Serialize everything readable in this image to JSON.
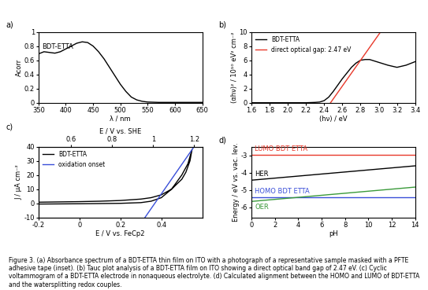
{
  "chart_data": [
    {
      "type": "line",
      "title": "a)",
      "x_label": "λ / nm",
      "y_label": "Acorr",
      "xlim": [
        350,
        650
      ],
      "xticks": [
        350,
        400,
        450,
        500,
        550,
        600,
        650
      ],
      "ylim": [
        0,
        1
      ],
      "yticks": [
        0,
        0.2,
        0.4,
        0.6,
        0.8,
        1
      ],
      "series": [
        {
          "name": "BDT-ETTA",
          "color": "#000000",
          "line_style": "solid",
          "x": [
            350,
            360,
            370,
            380,
            390,
            400,
            410,
            420,
            430,
            440,
            450,
            460,
            470,
            480,
            490,
            500,
            510,
            520,
            530,
            540,
            550,
            570,
            600,
            630,
            650
          ],
          "values": [
            0.69,
            0.72,
            0.71,
            0.7,
            0.72,
            0.76,
            0.8,
            0.84,
            0.86,
            0.85,
            0.8,
            0.72,
            0.62,
            0.5,
            0.38,
            0.26,
            0.16,
            0.08,
            0.04,
            0.02,
            0.01,
            0.005,
            0.005,
            0.005,
            0.005
          ]
        }
      ]
    },
    {
      "type": "line",
      "title": "b)",
      "x_label": "(hν) / eV",
      "y_label": "(αhν)² / 10¹⁰ eV² cm⁻²",
      "xlim": [
        1.6,
        3.4
      ],
      "xticks": [
        1.6,
        1.8,
        2.0,
        2.2,
        2.4,
        2.6,
        2.8,
        3.0,
        3.2,
        3.4
      ],
      "ylim": [
        0,
        10
      ],
      "yticks": [
        0,
        2,
        4,
        6,
        8,
        10
      ],
      "legend": "upper left",
      "series": [
        {
          "name": "BDT-ETTA",
          "color": "#000000",
          "line_style": "solid",
          "x": [
            1.6,
            1.8,
            2.0,
            2.2,
            2.3,
            2.35,
            2.4,
            2.45,
            2.5,
            2.55,
            2.6,
            2.65,
            2.7,
            2.75,
            2.8,
            2.85,
            2.9,
            2.95,
            3.0,
            3.1,
            3.2,
            3.3,
            3.4
          ],
          "values": [
            0,
            0,
            0,
            0,
            0.05,
            0.1,
            0.3,
            0.8,
            1.6,
            2.5,
            3.4,
            4.2,
            5.0,
            5.6,
            6.0,
            6.1,
            6.1,
            5.9,
            5.7,
            5.3,
            5.0,
            5.3,
            5.8
          ]
        },
        {
          "name": "direct optical gap: 2.47 eV",
          "color": "#e8392b",
          "line_style": "solid",
          "x": [
            2.47,
            3.02
          ],
          "values": [
            0,
            10
          ]
        }
      ]
    },
    {
      "type": "line",
      "title": "c)",
      "x_label": "E / V vs. FeCp2",
      "y_label": "J / µA cm⁻²",
      "xlim": [
        -0.2,
        0.6
      ],
      "xticks": [
        -0.2,
        0,
        0.2,
        0.4
      ],
      "x2_label": "E / V vs. SHE",
      "x2lim": [
        0.44,
        1.24
      ],
      "x2ticks": [
        0.6,
        0.8,
        1,
        1.2
      ],
      "ylim": [
        -10,
        40
      ],
      "yticks": [
        -10,
        0,
        10,
        20,
        30,
        40
      ],
      "legend": "upper left",
      "series": [
        {
          "name": "BDT-ETTA",
          "color": "#000000",
          "line_style": "solid",
          "x": [
            -0.2,
            0,
            0.2,
            0.3,
            0.35,
            0.4,
            0.45,
            0.5,
            0.53,
            0.55,
            0.54,
            0.52,
            0.5,
            0.45,
            0.4,
            0.35,
            0.3,
            0.2,
            0.1,
            0,
            -0.2,
            -0.2
          ],
          "values": [
            -0.5,
            -0.3,
            0,
            0.5,
            1.5,
            4,
            10,
            20,
            28,
            38,
            30,
            22,
            17,
            10,
            6,
            4,
            3,
            2,
            1.5,
            1.2,
            0.8,
            -0.5
          ]
        },
        {
          "name": "oxidation onset",
          "color": "#3a4fd8",
          "line_style": "solid",
          "x": [
            0.32,
            0.56
          ],
          "values": [
            -10,
            40
          ]
        }
      ]
    },
    {
      "type": "line",
      "title": "d)",
      "x_label": "pH",
      "y_label": "Energy / eV vs. vac. lev.",
      "xlim": [
        0,
        14
      ],
      "xticks": [
        0,
        2,
        4,
        6,
        8,
        10,
        12,
        14
      ],
      "ylim": [
        -6.6,
        -2.5
      ],
      "yticks": [
        -6,
        -5,
        -4,
        -3
      ],
      "series": [
        {
          "name": "LUMO BDT ETTA",
          "color": "#e8392b",
          "line_style": "solid",
          "x": [
            0,
            14
          ],
          "values": [
            -2.95,
            -2.95
          ]
        },
        {
          "name": "HER",
          "color": "#000000",
          "line_style": "solid",
          "x": [
            0,
            14
          ],
          "values": [
            -4.44,
            -3.61
          ]
        },
        {
          "name": "HOMO BDT ETTA",
          "color": "#3a4fd8",
          "line_style": "solid",
          "x": [
            0,
            14
          ],
          "values": [
            -5.42,
            -5.42
          ]
        },
        {
          "name": "OER",
          "color": "#3a9a3a",
          "line_style": "solid",
          "x": [
            0,
            14
          ],
          "values": [
            -5.67,
            -4.84
          ]
        }
      ]
    }
  ],
  "caption": "Figure 3. (a) Absorbance spectrum of a BDT-ETTA thin film on ITO with a photograph of a representative sample masked with a PFTE adhesive tape (inset). (b) Tauc plot analysis of a BDT-ETTA film on ITO showing a direct optical band gap of 2.47 eV. (c) Cyclic voltammogram of a BDT-ETTA electrode in nonaqueous electrolyte. (d) Calculated alignment between the HOMO and LUMO of BDT-ETTA and the watersplitting redox couples."
}
